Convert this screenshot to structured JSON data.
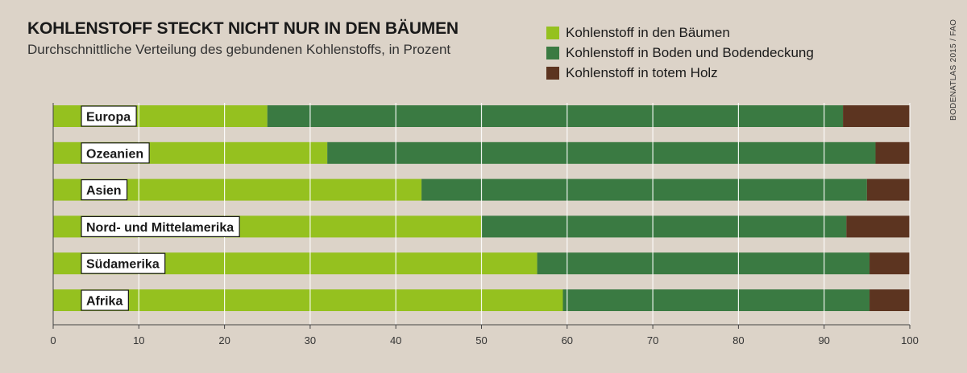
{
  "header": {
    "title": "KOHLENSTOFF STECKT NICHT NUR IN DEN BÄUMEN",
    "subtitle": "Durchschnittliche Verteilung des gebundenen Kohlenstoffs, in Prozent"
  },
  "source": "BODENATLAS 2015 / FAO",
  "chart_data": {
    "type": "bar",
    "orientation": "horizontal",
    "stacked": true,
    "title": "KOHLENSTOFF STECKT NICHT NUR IN DEN BÄUMEN",
    "subtitle": "Durchschnittliche Verteilung des gebundenen Kohlenstoffs, in Prozent",
    "categories": [
      "Europa",
      "Ozeanien",
      "Asien",
      "Nord- und Mittelamerika",
      "Südamerika",
      "Afrika"
    ],
    "series": [
      {
        "name": "Kohlenstoff in den Bäumen",
        "color": "#95c11f",
        "values": [
          25,
          32,
          43,
          50,
          56.5,
          59.5
        ]
      },
      {
        "name": "Kohlenstoff in Boden und Bodendeckung",
        "color": "#3a7a42",
        "values": [
          67.2,
          64,
          52,
          42.6,
          38.8,
          35.8
        ]
      },
      {
        "name": "Kohlenstoff in totem Holz",
        "color": "#5c3420",
        "values": [
          7.8,
          4,
          5,
          7.4,
          4.7,
          4.7
        ]
      }
    ],
    "xlim": [
      0,
      100
    ],
    "xticks": [
      0,
      10,
      20,
      30,
      40,
      50,
      60,
      70,
      80,
      90,
      100
    ],
    "grid": true,
    "legend_position": "top-right"
  }
}
